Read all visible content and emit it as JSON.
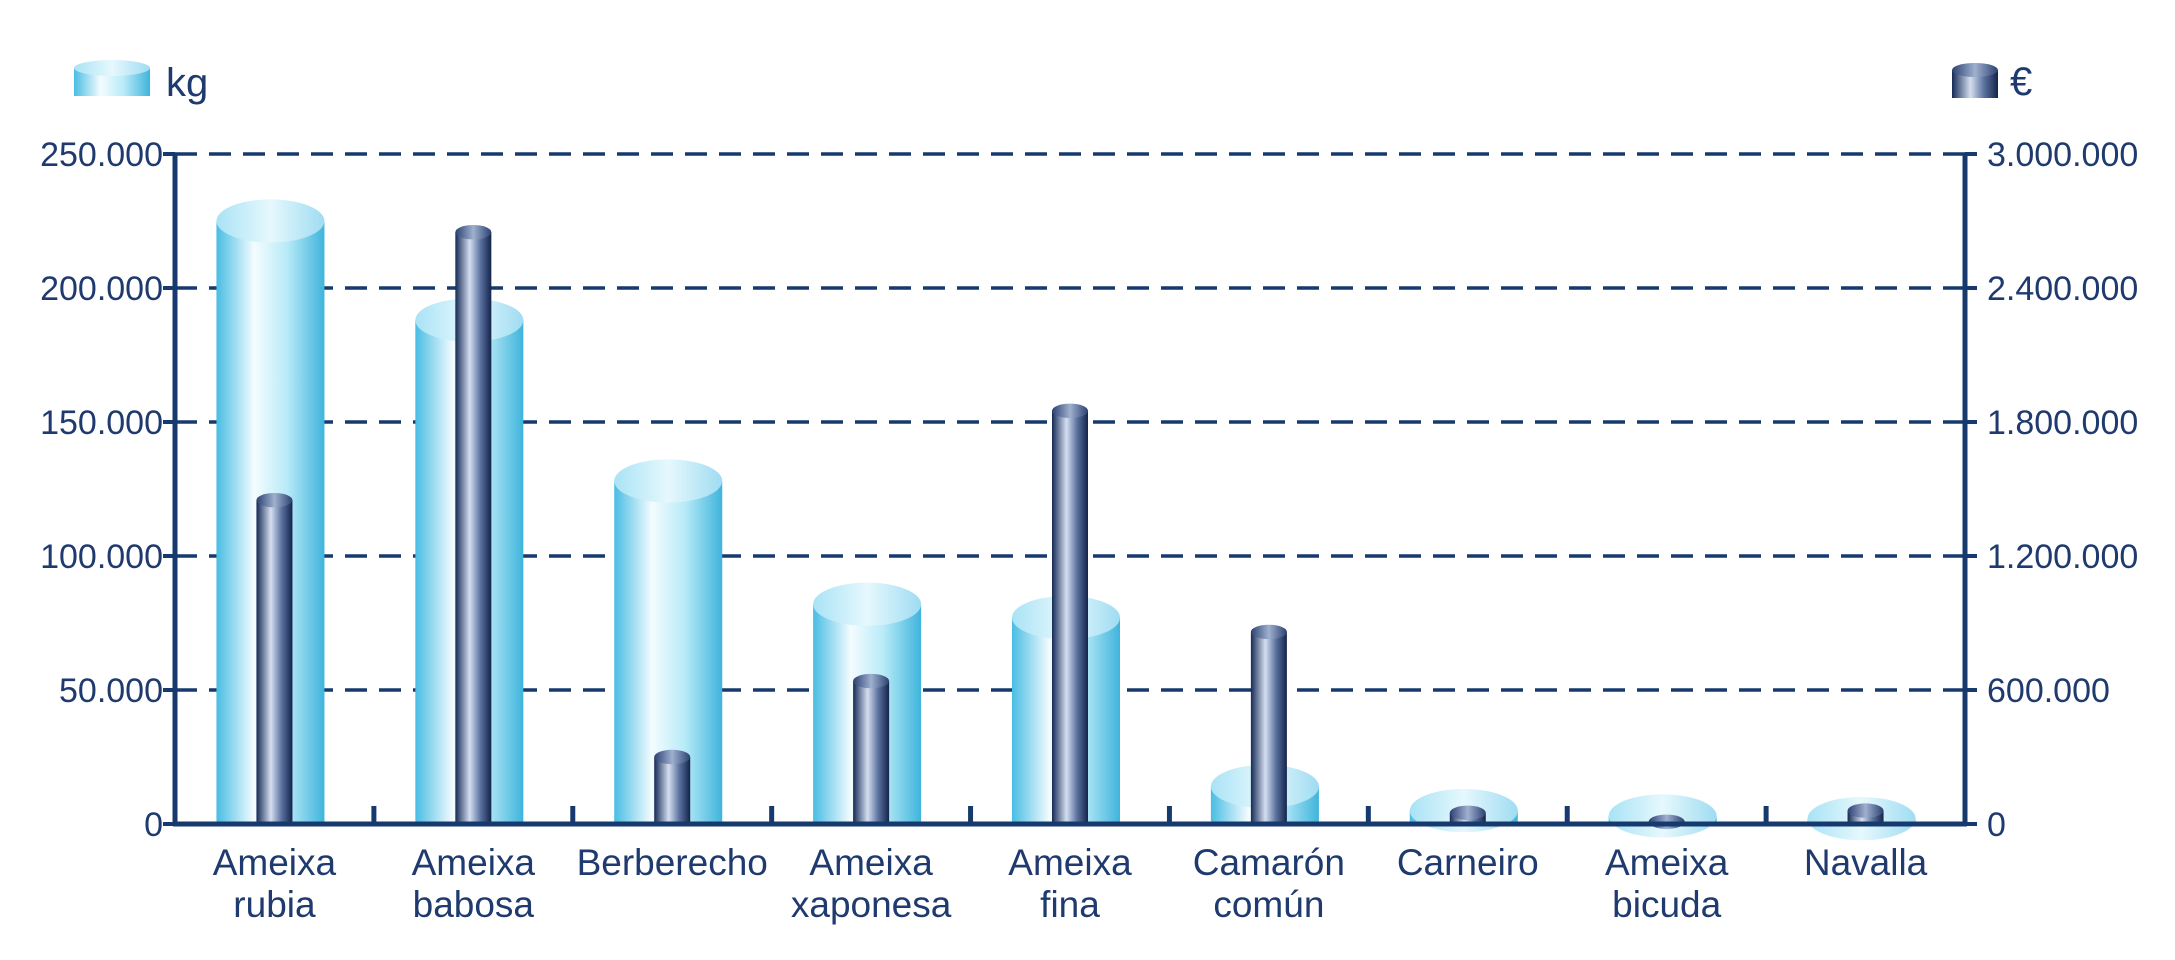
{
  "chart_data": {
    "type": "bar",
    "title": "",
    "xlabel": "",
    "ylabel": "",
    "categories": [
      [
        "Ameixa",
        "rubia"
      ],
      [
        "Ameixa",
        "babosa"
      ],
      [
        "Berberecho"
      ],
      [
        "Ameixa",
        "xaponesa"
      ],
      [
        "Ameixa",
        "fina"
      ],
      [
        "Camarón",
        "común"
      ],
      [
        "Carneiro"
      ],
      [
        "Ameixa",
        "bicuda"
      ],
      [
        "Navalla"
      ]
    ],
    "series": [
      {
        "name": "kg",
        "axis": "left",
        "values": [
          225000,
          188000,
          128000,
          82000,
          77000,
          14000,
          5000,
          3000,
          2000
        ]
      },
      {
        "name": "€",
        "axis": "right",
        "values": [
          1450000,
          2650000,
          300000,
          640000,
          1850000,
          860000,
          50000,
          10000,
          60000
        ]
      }
    ],
    "ylim_left": [
      0,
      250000
    ],
    "ylim_right": [
      0,
      3000000
    ],
    "left_ticks": [
      "0",
      "50.000",
      "100.000",
      "150.000",
      "200.000",
      "250.000"
    ],
    "right_ticks": [
      "0",
      "600.000",
      "1.200.000",
      "1.800.000",
      "2.400.000",
      "3.000.000"
    ],
    "grid": "dashed-horizontal",
    "legend_placement": "top-left and top-right",
    "colors": {
      "axis": "#173a6e",
      "kg_light": "#e8f8fd",
      "kg_mid": "#7fd5ee",
      "kg_dark": "#45b9e0",
      "eur_light": "#c8d3e6",
      "eur_mid": "#4f6795",
      "eur_dark": "#14254d",
      "text": "#1f3a6e"
    }
  }
}
